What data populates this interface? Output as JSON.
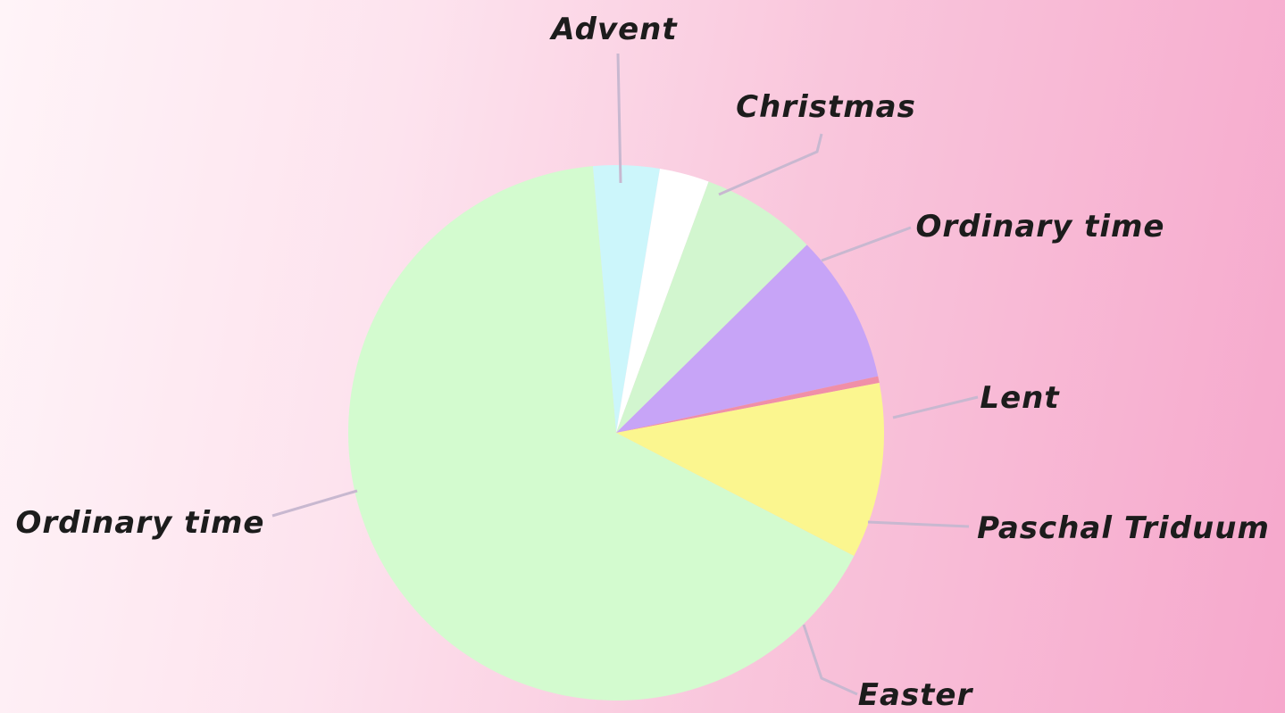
{
  "chart_data": {
    "type": "pie",
    "title": "",
    "start_angle_deg": -95,
    "slices": [
      {
        "label": "Advent",
        "value": 4,
        "color": "#ccf6fb"
      },
      {
        "label": "Christmas",
        "value": 3,
        "color": "#ffffff"
      },
      {
        "label": "Ordinary time",
        "value": 7,
        "color": "#d2f6cf"
      },
      {
        "label": "Lent",
        "value": 9,
        "color": "#c7a4f7"
      },
      {
        "label": "Paschal Triduum",
        "value": 0.4,
        "color": "#f08fa8"
      },
      {
        "label": "Easter",
        "value": 10.6,
        "color": "#fbf68f"
      },
      {
        "label": "Ordinary time",
        "value": 66,
        "color": "#d3fbcf"
      }
    ]
  }
}
